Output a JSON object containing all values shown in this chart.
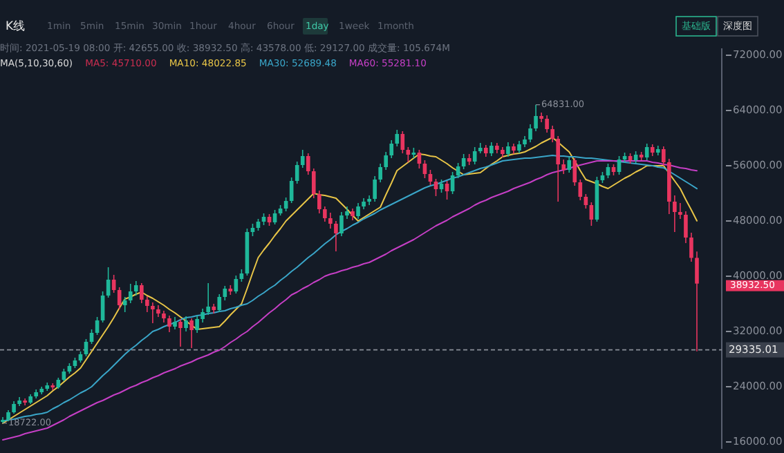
{
  "chart_data": {
    "type": "candlestick",
    "title": "K线",
    "subtitle": "时间: 2021-05-19 08:00   开: 42655.00   收: 38932.50   高: 43578.00   低: 29127.00   成交量: 105.674M",
    "annotations": [
      "1min",
      "5min",
      "15min",
      "30min",
      "1hour",
      "4hour",
      "6hour",
      "1day",
      "1week",
      "1month",
      "基础版",
      "深度图",
      "MA(5,10,30,60)",
      "MA5: 45710.00",
      "64831.00",
      "18722.00",
      "38932.50"
    ],
    "categories": [
      null,
      null,
      null,
      null,
      null,
      null,
      null,
      null,
      null,
      null,
      null,
      null,
      null,
      null,
      null,
      null,
      null,
      null,
      null,
      null,
      null,
      null,
      null,
      null,
      null,
      null,
      null,
      null,
      null,
      null,
      null,
      null,
      null,
      null,
      null,
      null,
      null,
      null,
      null,
      null,
      null,
      null,
      null,
      null,
      null,
      null,
      null,
      null,
      null,
      null,
      null,
      null,
      null,
      null,
      null,
      null,
      null,
      null,
      null,
      null,
      null,
      null,
      null,
      null,
      null,
      null,
      null,
      null,
      null,
      null,
      null,
      null,
      null,
      null,
      null,
      null,
      null,
      null,
      null,
      null,
      null,
      null,
      null,
      null,
      null,
      null,
      null,
      null,
      null,
      null,
      null,
      null,
      null,
      null,
      null,
      null,
      null,
      null,
      null,
      null,
      null,
      null,
      null,
      null,
      null,
      null,
      null,
      null,
      null,
      null,
      null,
      null,
      null,
      null,
      null,
      null,
      null,
      null,
      null,
      null,
      null,
      null,
      null,
      null,
      null,
      null
    ],
    "ohlc": [
      [
        18900,
        19600,
        18722,
        19200
      ],
      [
        19200,
        20600,
        19000,
        20300
      ],
      [
        20300,
        21900,
        20100,
        21500
      ],
      [
        21500,
        22500,
        21200,
        22000
      ],
      [
        22000,
        22300,
        21300,
        21700
      ],
      [
        21700,
        22900,
        21500,
        22600
      ],
      [
        22600,
        23600,
        22300,
        23200
      ],
      [
        23200,
        24000,
        22900,
        23700
      ],
      [
        23700,
        24600,
        23400,
        24200
      ],
      [
        24200,
        24500,
        23500,
        23900
      ],
      [
        23900,
        25300,
        23700,
        25000
      ],
      [
        25000,
        26600,
        24800,
        26200
      ],
      [
        26200,
        27400,
        25900,
        27000
      ],
      [
        27000,
        28200,
        26700,
        27800
      ],
      [
        27800,
        29100,
        27500,
        28700
      ],
      [
        28700,
        30900,
        28400,
        30500
      ],
      [
        30500,
        32300,
        30200,
        31800
      ],
      [
        31800,
        34100,
        31500,
        33600
      ],
      [
        33600,
        37800,
        33300,
        37200
      ],
      [
        37200,
        41300,
        36900,
        39500
      ],
      [
        39500,
        40200,
        37600,
        38000
      ],
      [
        38000,
        38400,
        35200,
        35800
      ],
      [
        35800,
        37000,
        34800,
        36500
      ],
      [
        36500,
        38900,
        36100,
        37800
      ],
      [
        37800,
        39300,
        37200,
        38700
      ],
      [
        38700,
        39000,
        36100,
        36600
      ],
      [
        36600,
        37100,
        34800,
        35700
      ],
      [
        35700,
        36200,
        33200,
        35200
      ],
      [
        35200,
        35800,
        34100,
        34600
      ],
      [
        34600,
        35000,
        33300,
        33900
      ],
      [
        33900,
        34300,
        31900,
        32700
      ],
      [
        32700,
        34100,
        32300,
        33400
      ],
      [
        33400,
        33800,
        29800,
        32500
      ],
      [
        32500,
        34200,
        32000,
        33600
      ],
      [
        33600,
        33900,
        29600,
        32200
      ],
      [
        32200,
        34300,
        31800,
        33800
      ],
      [
        33800,
        35300,
        33300,
        34800
      ],
      [
        34800,
        39000,
        34400,
        35600
      ],
      [
        35600,
        36000,
        34600,
        35100
      ],
      [
        35100,
        37400,
        34800,
        37000
      ],
      [
        37000,
        38600,
        36500,
        38200
      ],
      [
        38200,
        38700,
        37300,
        37800
      ],
      [
        37800,
        40100,
        37500,
        39600
      ],
      [
        39600,
        41000,
        39200,
        40400
      ],
      [
        40400,
        46900,
        40100,
        46400
      ],
      [
        46400,
        47600,
        45800,
        47000
      ],
      [
        47000,
        48300,
        46600,
        47900
      ],
      [
        47900,
        49100,
        47400,
        48600
      ],
      [
        48600,
        49000,
        47300,
        47800
      ],
      [
        47800,
        49600,
        47500,
        49100
      ],
      [
        49100,
        50300,
        48800,
        49800
      ],
      [
        49800,
        51400,
        49400,
        50900
      ],
      [
        50900,
        54300,
        50600,
        53800
      ],
      [
        53800,
        56600,
        53400,
        56100
      ],
      [
        56100,
        58300,
        55700,
        57400
      ],
      [
        57400,
        57800,
        54700,
        55200
      ],
      [
        55200,
        55600,
        51300,
        51900
      ],
      [
        51900,
        52400,
        49100,
        49700
      ],
      [
        49700,
        50100,
        47900,
        48400
      ],
      [
        48400,
        49200,
        46900,
        47600
      ],
      [
        47600,
        48000,
        43600,
        46200
      ],
      [
        46200,
        49300,
        45800,
        48800
      ],
      [
        48800,
        50100,
        48300,
        49400
      ],
      [
        49400,
        49800,
        48100,
        48700
      ],
      [
        48700,
        50600,
        48300,
        50100
      ],
      [
        50100,
        51300,
        49700,
        50800
      ],
      [
        50800,
        51700,
        50300,
        51200
      ],
      [
        51200,
        54500,
        50800,
        54000
      ],
      [
        54000,
        56300,
        53600,
        55800
      ],
      [
        55800,
        58000,
        55400,
        57500
      ],
      [
        57500,
        59700,
        57100,
        59200
      ],
      [
        59200,
        61200,
        58800,
        60600
      ],
      [
        60600,
        61000,
        57800,
        58300
      ],
      [
        58300,
        58700,
        56500,
        57600
      ],
      [
        57600,
        58600,
        57100,
        57900
      ],
      [
        57900,
        58300,
        55600,
        56300
      ],
      [
        56300,
        56800,
        54200,
        54800
      ],
      [
        54800,
        55400,
        53200,
        53700
      ],
      [
        53700,
        54100,
        51600,
        52600
      ],
      [
        52600,
        54000,
        52100,
        53400
      ],
      [
        53400,
        53800,
        51100,
        52300
      ],
      [
        52300,
        55100,
        51900,
        54600
      ],
      [
        54600,
        56400,
        54200,
        55900
      ],
      [
        55900,
        57700,
        55500,
        57100
      ],
      [
        57100,
        57700,
        56100,
        56600
      ],
      [
        56600,
        58700,
        56200,
        58100
      ],
      [
        58100,
        59300,
        57800,
        58600
      ],
      [
        58600,
        59000,
        57300,
        57800
      ],
      [
        57800,
        59400,
        57400,
        58900
      ],
      [
        58900,
        59300,
        57800,
        58300
      ],
      [
        58300,
        58700,
        57200,
        57700
      ],
      [
        57700,
        59400,
        57300,
        58800
      ],
      [
        58800,
        59200,
        57700,
        58200
      ],
      [
        58200,
        59600,
        57800,
        59100
      ],
      [
        59100,
        60300,
        58700,
        59800
      ],
      [
        59800,
        62000,
        59400,
        61400
      ],
      [
        61400,
        64831,
        61000,
        63200
      ],
      [
        63200,
        63700,
        62300,
        62800
      ],
      [
        62800,
        63300,
        60800,
        61300
      ],
      [
        61300,
        61800,
        59400,
        59900
      ],
      [
        59900,
        60300,
        50800,
        56200
      ],
      [
        56200,
        56900,
        54800,
        55400
      ],
      [
        55400,
        57300,
        55000,
        56800
      ],
      [
        56800,
        57100,
        53100,
        53600
      ],
      [
        53600,
        54000,
        51000,
        51500
      ],
      [
        51500,
        51900,
        49800,
        50300
      ],
      [
        50300,
        50700,
        47300,
        48200
      ],
      [
        48200,
        54400,
        47900,
        53900
      ],
      [
        53900,
        55100,
        53500,
        54600
      ],
      [
        54600,
        56300,
        54200,
        55800
      ],
      [
        55800,
        56200,
        54600,
        55100
      ],
      [
        55100,
        57400,
        54700,
        56900
      ],
      [
        56900,
        57900,
        56500,
        57400
      ],
      [
        57400,
        57800,
        56300,
        56800
      ],
      [
        56800,
        58100,
        56400,
        57600
      ],
      [
        57600,
        58000,
        56800,
        57200
      ],
      [
        57200,
        59200,
        56800,
        58700
      ],
      [
        58700,
        59100,
        57400,
        57900
      ],
      [
        57900,
        58900,
        57500,
        58400
      ],
      [
        58400,
        58800,
        56000,
        56500
      ],
      [
        56500,
        57000,
        49000,
        50800
      ],
      [
        50800,
        51700,
        46400,
        49300
      ],
      [
        49300,
        50600,
        48300,
        48900
      ],
      [
        48900,
        49400,
        44800,
        45600
      ],
      [
        45600,
        46300,
        42100,
        42655
      ],
      [
        42655,
        43578,
        29127,
        38932.5
      ]
    ],
    "series": [
      {
        "type": "line",
        "name": "MA10: 48022.85",
        "color": "#e8c547",
        "values": [
          18700,
          19200,
          19700,
          20200,
          20700,
          21200,
          21700,
          22200,
          22700,
          23400,
          24000,
          24700,
          25400,
          26000,
          26700,
          27900,
          29100,
          30300,
          31500,
          32700,
          34000,
          35400,
          36700,
          37000,
          37400,
          37700,
          37200,
          36800,
          36300,
          35800,
          35200,
          34700,
          34100,
          33500,
          32900,
          32300,
          32400,
          32500,
          32600,
          32700,
          33500,
          34400,
          35200,
          36000,
          38200,
          40500,
          42700,
          43800,
          44800,
          45900,
          46900,
          48000,
          48800,
          49600,
          50400,
          51200,
          52000,
          51800,
          51700,
          51500,
          51300,
          50500,
          49700,
          48800,
          48000,
          48500,
          49000,
          49500,
          50000,
          51800,
          53500,
          55300,
          55900,
          56500,
          57100,
          57700,
          57600,
          57400,
          57300,
          56800,
          56300,
          55700,
          55200,
          54700,
          54800,
          54900,
          55000,
          55600,
          56200,
          56700,
          57300,
          57500,
          57700,
          57800,
          58000,
          58400,
          58800,
          59300,
          59700,
          60100,
          59400,
          58700,
          58000,
          56700,
          55300,
          54000,
          53700,
          53400,
          53000,
          52700,
          53200,
          53700,
          54200,
          54600,
          55100,
          55500,
          56000,
          56000,
          56000,
          56000,
          54900,
          53800,
          52700,
          51100,
          49600,
          48022.85
        ]
      },
      {
        "type": "line",
        "name": "MA30: 52689.48",
        "color": "#3aa6c9",
        "values": [
          19000,
          19200,
          19300,
          19500,
          19700,
          19800,
          20000,
          20100,
          20300,
          20800,
          21200,
          21700,
          22100,
          22600,
          23100,
          23500,
          24000,
          24800,
          25600,
          26300,
          27100,
          27900,
          28700,
          29400,
          30000,
          30700,
          31300,
          32000,
          32300,
          32700,
          33000,
          33300,
          33700,
          34000,
          34100,
          34300,
          34400,
          34600,
          34700,
          34900,
          35000,
          35300,
          35500,
          35800,
          36000,
          36500,
          37100,
          37600,
          38200,
          38700,
          39400,
          40000,
          40700,
          41300,
          42000,
          42700,
          43300,
          44000,
          44700,
          45300,
          46000,
          46500,
          46900,
          47400,
          47800,
          48300,
          48700,
          49100,
          49600,
          50000,
          50400,
          50800,
          51200,
          51600,
          52000,
          52400,
          52800,
          53100,
          53300,
          53600,
          53900,
          54200,
          54400,
          54700,
          55000,
          55300,
          55600,
          55800,
          56100,
          56400,
          56700,
          56800,
          56900,
          57000,
          57100,
          57100,
          57200,
          57300,
          57400,
          57500,
          57400,
          57400,
          57300,
          57300,
          57200,
          57100,
          57100,
          57000,
          56900,
          56800,
          56700,
          56600,
          56500,
          56400,
          56300,
          56200,
          56100,
          56000,
          55800,
          55700,
          55200,
          54700,
          54200,
          53700,
          53200,
          52689.48
        ]
      },
      {
        "type": "line",
        "name": "MA60: 55281.10",
        "color": "#c63fc6",
        "values": [
          16300,
          16500,
          16700,
          16900,
          17200,
          17400,
          17600,
          17800,
          18000,
          18400,
          18800,
          19200,
          19700,
          20100,
          20500,
          20900,
          21300,
          21700,
          22000,
          22400,
          22800,
          23100,
          23500,
          23900,
          24200,
          24600,
          24900,
          25300,
          25600,
          26000,
          26300,
          26600,
          27000,
          27300,
          27600,
          28000,
          28300,
          28600,
          29000,
          29300,
          29800,
          30400,
          30900,
          31500,
          32000,
          32700,
          33300,
          34000,
          34700,
          35300,
          36000,
          36600,
          37300,
          37700,
          38200,
          38600,
          39100,
          39500,
          40000,
          40300,
          40500,
          40800,
          41000,
          41300,
          41500,
          41800,
          42000,
          42400,
          42800,
          43200,
          43700,
          44100,
          44500,
          44900,
          45300,
          45800,
          46300,
          46800,
          47300,
          47700,
          48100,
          48600,
          49000,
          49400,
          49800,
          50300,
          50700,
          51000,
          51400,
          51700,
          52000,
          52300,
          52700,
          53000,
          53300,
          53600,
          54000,
          54300,
          54700,
          55000,
          55200,
          55400,
          55600,
          55900,
          56100,
          56300,
          56500,
          56700,
          56700,
          56700,
          56700,
          56700,
          56700,
          56700,
          56700,
          56700,
          56700,
          56500,
          56400,
          56200,
          56100,
          55900,
          55700,
          55600,
          55400,
          55281.1
        ]
      }
    ],
    "ylim": [
      15000,
      73000
    ],
    "yticks": [
      {
        "value": 16000,
        "label": "16000.00"
      },
      {
        "value": 24000,
        "label": "24000.00"
      },
      {
        "value": 32000,
        "label": "32000.00"
      },
      {
        "value": 40000,
        "label": "40000.00"
      },
      {
        "value": 48000,
        "label": "48000.00"
      },
      {
        "value": 56000,
        "label": "56000.00"
      },
      {
        "value": 64000,
        "label": "64000.00"
      },
      {
        "value": 72000,
        "label": "72000.00"
      }
    ],
    "ref_lines": [
      {
        "axis": "y",
        "value": 29335.01,
        "label": "29335.01",
        "color": "#8a8f99",
        "line_style": "dashed"
      }
    ],
    "tick_labels": "y"
  }
}
